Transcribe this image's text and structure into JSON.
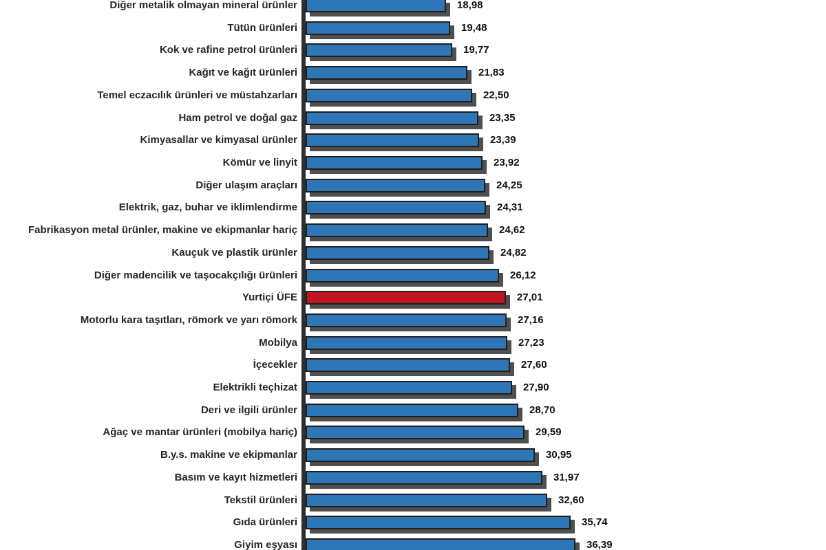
{
  "chart_data": {
    "type": "bar",
    "orientation": "horizontal",
    "title": "",
    "xlabel": "",
    "ylabel": "",
    "grid": false,
    "legend": false,
    "value_axis_start": 0,
    "decimal_separator": ",",
    "categories": [
      "Diğer metalik olmayan mineral ürünler",
      "Tütün ürünleri",
      "Kok ve rafine petrol ürünleri",
      "Kağıt ve kağıt ürünleri",
      "Temel eczacılık ürünleri ve müstahzarları",
      "Ham petrol ve doğal gaz",
      "Kimyasallar ve kimyasal ürünler",
      "Kömür ve linyit",
      "Diğer ulaşım araçları",
      "Elektrik, gaz, buhar ve iklimlendirme",
      "Fabrikasyon metal ürünler, makine ve ekipmanlar hariç",
      "Kauçuk ve plastik ürünler",
      "Diğer madencilik ve taşocakçılığı ürünleri",
      "Yurtiçi ÜFE",
      "Motorlu kara taşıtları, römork ve yarı römork",
      "Mobilya",
      "İçecekler",
      "Elektrikli teçhizat",
      "Deri ve ilgili ürünler",
      "Ağaç ve mantar ürünleri (mobilya hariç)",
      "B.y.s. makine ve ekipmanlar",
      "Basım ve kayıt hizmetleri",
      "Tekstil ürünleri",
      "Gıda ürünleri",
      "Giyim eşyası"
    ],
    "values": [
      18.98,
      19.48,
      19.77,
      21.83,
      22.5,
      23.35,
      23.39,
      23.92,
      24.25,
      24.31,
      24.62,
      24.82,
      26.12,
      27.01,
      27.16,
      27.23,
      27.6,
      27.9,
      28.7,
      29.59,
      30.95,
      31.97,
      32.6,
      35.74,
      36.39
    ],
    "value_labels": [
      "18,98",
      "19,48",
      "19,77",
      "21,83",
      "22,50",
      "23,35",
      "23,39",
      "23,92",
      "24,25",
      "24,31",
      "24,62",
      "24,82",
      "26,12",
      "27,01",
      "27,16",
      "27,23",
      "27,60",
      "27,90",
      "28,70",
      "29,59",
      "30,95",
      "31,97",
      "32,60",
      "35,74",
      "36,39"
    ],
    "highlight": {
      "index": 13,
      "label": "Yurtiçi ÜFE",
      "color": "#bf1722"
    },
    "colors": {
      "bar": "#2e76b5",
      "highlight": "#bf1722",
      "bar_edge": "#1f1f1f",
      "bar_shadow": "#4f4f4f",
      "axis": "#2e2e2e",
      "value_text": "#111111",
      "label_text": "#262626",
      "background": "#ffffff"
    }
  }
}
